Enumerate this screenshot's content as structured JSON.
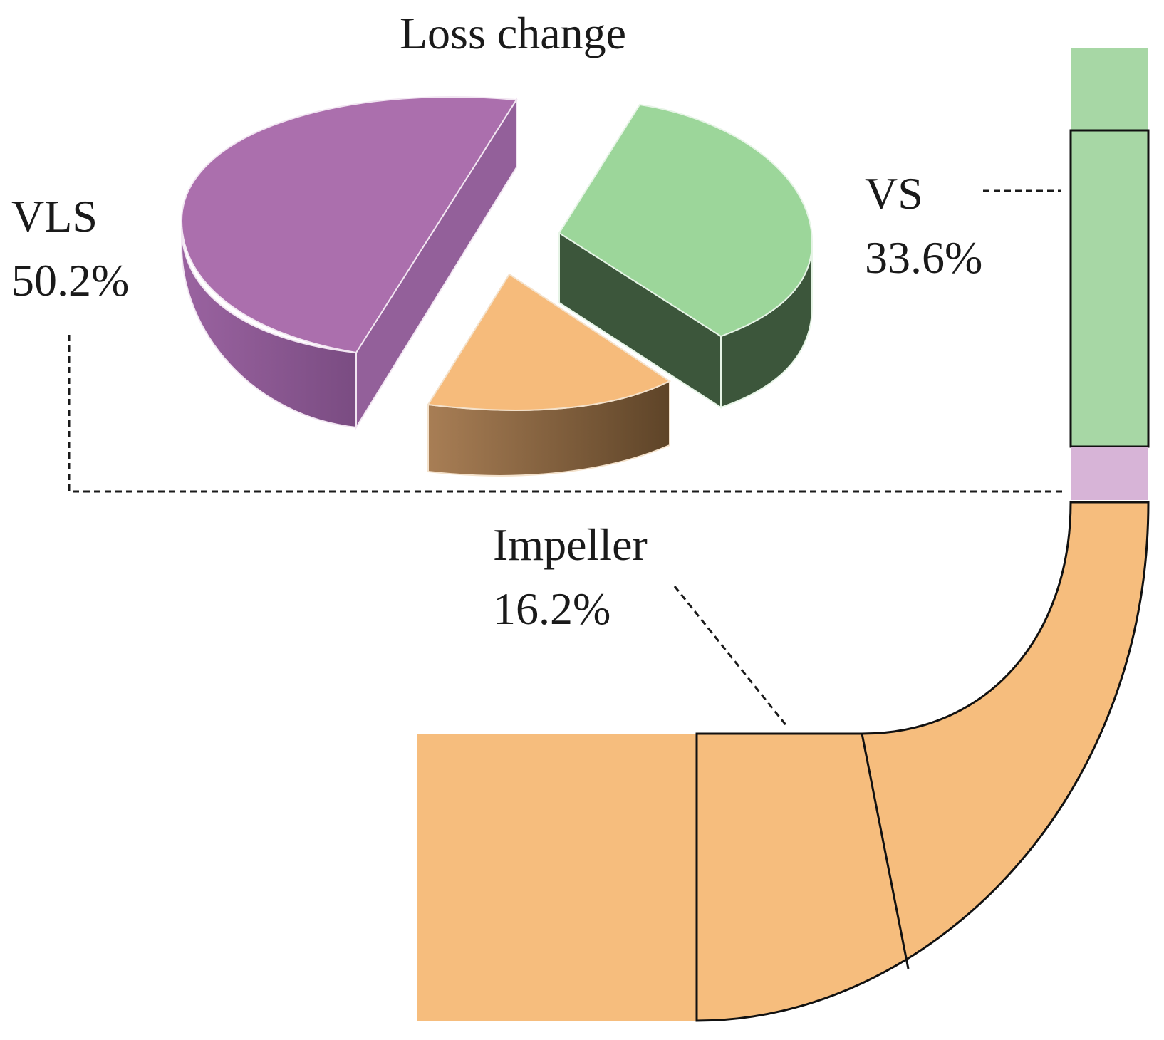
{
  "chart_data": {
    "type": "pie",
    "title": "Loss change",
    "slices": [
      {
        "label": "VLS",
        "value": 50.2,
        "value_text": "50.2%",
        "color": "#ab6fad",
        "side_color": "#8e5a92"
      },
      {
        "label": "VS",
        "value": 33.6,
        "value_text": "33.6%",
        "color": "#9cd69a",
        "side_color": "#3c563b"
      },
      {
        "label": "Impeller",
        "value": 16.2,
        "value_text": "16.2%",
        "color": "#f6bb7b",
        "side_color": "#8c6540"
      }
    ],
    "style": "3d-exploded"
  },
  "diagram": {
    "segments": [
      {
        "name": "VS",
        "color": "#a7d7a5"
      },
      {
        "name": "VLS",
        "color": "#d7b4d7"
      },
      {
        "name": "Impeller",
        "color": "#f6bd7d"
      }
    ]
  }
}
